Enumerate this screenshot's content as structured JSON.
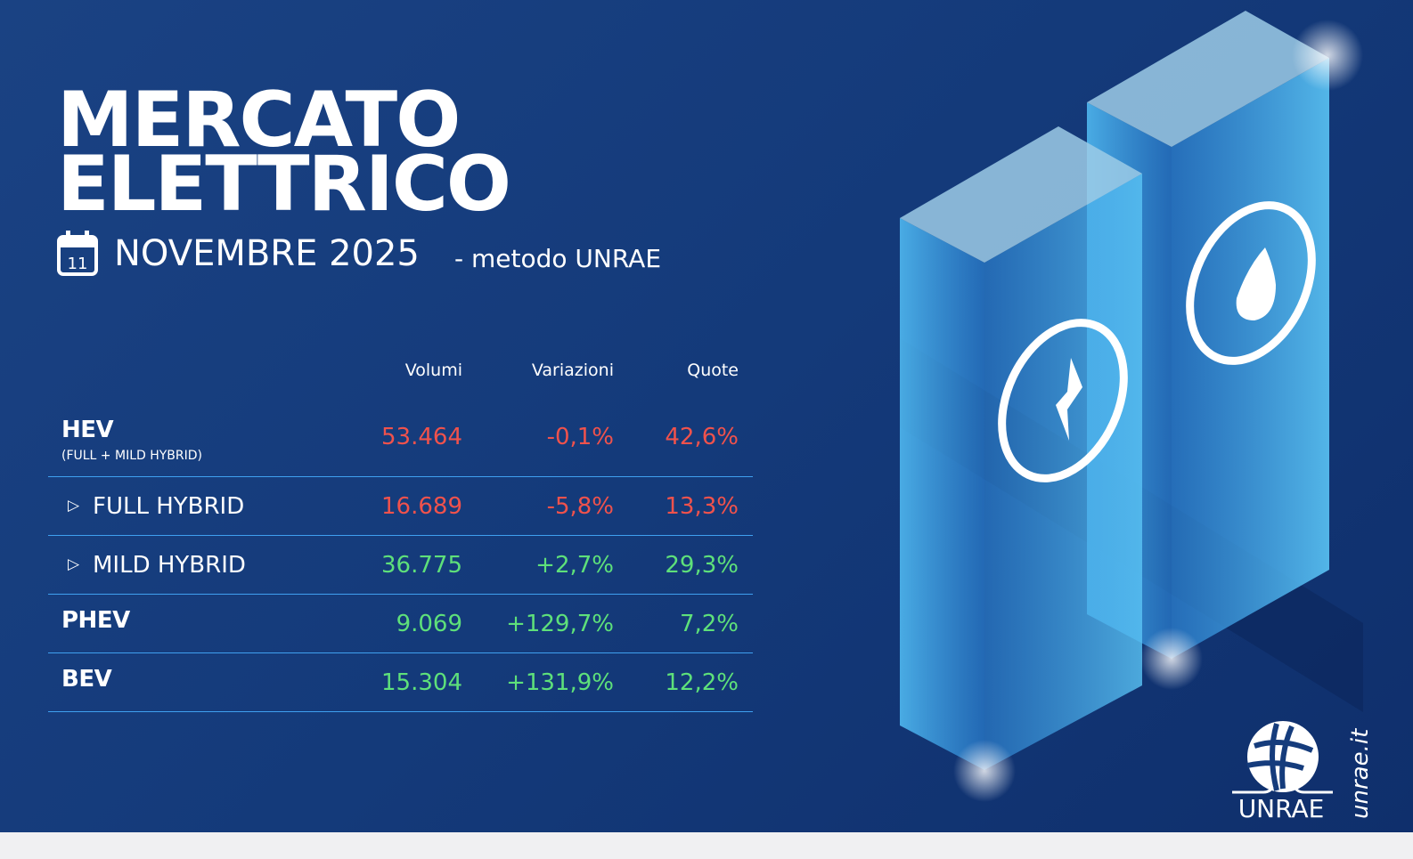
{
  "title": {
    "line1": "MERCATO",
    "line2": "ELETTRICO"
  },
  "period": {
    "calendar_icon_text": "11",
    "month": "NOVEMBRE 2025",
    "method": "- metodo UNRAE"
  },
  "table": {
    "headers": [
      "Volumi",
      "Variazioni",
      "Quote"
    ],
    "rows": [
      {
        "label": "HEV",
        "sublabel": "(FULL + MILD HYBRID)",
        "volumi": "53.464",
        "variazioni": "-0,1%",
        "quote": "42,6%",
        "trend": "negative"
      },
      {
        "label": "FULL HYBRID",
        "icon": "triangle-right-icon",
        "volumi": "16.689",
        "variazioni": "-5,8%",
        "quote": "13,3%",
        "trend": "negative"
      },
      {
        "label": "MILD HYBRID",
        "icon": "triangle-right-icon",
        "volumi": "36.775",
        "variazioni": "+2,7%",
        "quote": "29,3%",
        "trend": "positive"
      },
      {
        "label": "PHEV",
        "volumi": "9.069",
        "variazioni": "+129,7%",
        "quote": "7,2%",
        "trend": "positive"
      },
      {
        "label": "BEV",
        "volumi": "15.304",
        "variazioni": "+131,9%",
        "quote": "12,2%",
        "trend": "positive"
      }
    ]
  },
  "colors": {
    "background": "#153c7c",
    "negative": "#f0524c",
    "positive": "#5ee07a",
    "divider": "#3fa0f0"
  },
  "brand": {
    "logo_text": "UNRAE",
    "website": "unrae.it"
  }
}
